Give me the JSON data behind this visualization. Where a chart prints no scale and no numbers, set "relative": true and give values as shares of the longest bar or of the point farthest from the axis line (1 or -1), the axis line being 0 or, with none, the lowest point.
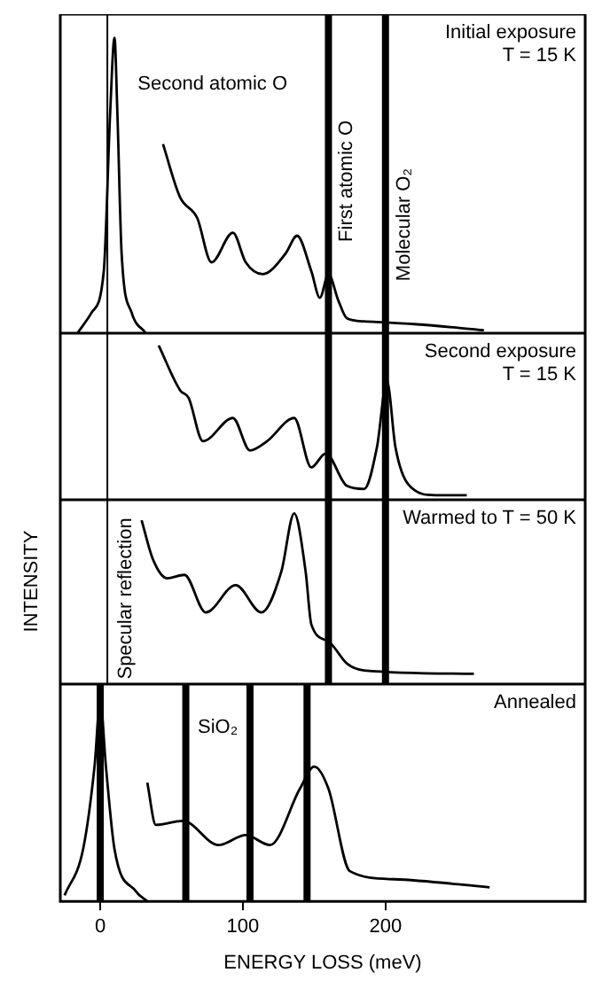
{
  "chart_data": [
    {
      "type": "line",
      "title": "Initial exposure T = 15 K",
      "relative": true,
      "xlim": [
        -28,
        340
      ],
      "xticks": [
        0,
        100,
        200
      ],
      "tick_labels": false,
      "series": [
        {
          "color": "#000000",
          "x": [
            -16,
            -6,
            2.5,
            7,
            10,
            12,
            15,
            22,
            32
          ],
          "values": [
            0,
            0.07,
            0.21,
            0.75,
            1,
            0.75,
            0.27,
            0.07,
            0
          ]
        },
        {
          "color": "#000000",
          "x": [
            44,
            56,
            68,
            78,
            93,
            102,
            114,
            130,
            138,
            148,
            154,
            160,
            167,
            173,
            185,
            222,
            269
          ],
          "values": [
            0.64,
            0.46,
            0.39,
            0.24,
            0.34,
            0.24,
            0.2,
            0.27,
            0.33,
            0.21,
            0.12,
            0.2,
            0.11,
            0.05,
            0.04,
            0.03,
            0.01
          ]
        }
      ],
      "ref_lines": [
        {
          "axis": "x",
          "value": 5,
          "color": "#000000"
        },
        {
          "axis": "x",
          "value": 160,
          "label": "First atomic O",
          "color": "#000000"
        },
        {
          "axis": "x",
          "value": 200,
          "label": "Molecular O₂",
          "color": "#000000"
        }
      ],
      "annotations": [
        "Second atomic O"
      ]
    },
    {
      "type": "line",
      "title": "Second exposure T = 15 K",
      "relative": true,
      "xlim": [
        -28,
        340
      ],
      "xticks": [
        0,
        100,
        200
      ],
      "tick_labels": false,
      "series": [
        {
          "color": "#000000",
          "x": [
            41,
            56,
            62,
            72,
            93,
            105,
            117,
            136,
            148,
            158,
            173,
            185,
            194,
            201,
            207,
            216,
            235,
            257
          ],
          "values": [
            1,
            0.71,
            0.66,
            0.38,
            0.53,
            0.32,
            0.38,
            0.53,
            0.21,
            0.3,
            0.09,
            0.07,
            0.34,
            0.77,
            0.34,
            0.1,
            0.03,
            0.03
          ]
        }
      ],
      "ref_lines": [
        {
          "axis": "x",
          "value": 5,
          "color": "#000000"
        },
        {
          "axis": "x",
          "value": 160,
          "color": "#000000"
        },
        {
          "axis": "x",
          "value": 200,
          "color": "#000000"
        }
      ]
    },
    {
      "type": "line",
      "title": "Warmed to T = 50 K",
      "ylabel": "INTENSITY",
      "relative": true,
      "xlim": [
        -28,
        340
      ],
      "xticks": [
        0,
        100,
        200
      ],
      "tick_labels": false,
      "series": [
        {
          "color": "#000000",
          "x": [
            29,
            37,
            47,
            59,
            74,
            95,
            113,
            127,
            136,
            144,
            148,
            160,
            173,
            185,
            262
          ],
          "values": [
            0.96,
            0.73,
            0.62,
            0.64,
            0.42,
            0.58,
            0.42,
            0.66,
            1,
            0.66,
            0.35,
            0.25,
            0.12,
            0.08,
            0.06
          ]
        }
      ],
      "ref_lines": [
        {
          "axis": "x",
          "value": 5,
          "label": "Specular reflection",
          "color": "#000000"
        },
        {
          "axis": "x",
          "value": 160,
          "color": "#000000"
        },
        {
          "axis": "x",
          "value": 200,
          "color": "#000000"
        }
      ]
    },
    {
      "type": "line",
      "title": "Annealed",
      "xlabel": "ENERGY LOSS (meV)",
      "relative": true,
      "xlim": [
        -28,
        340
      ],
      "xticks": [
        0,
        100,
        200
      ],
      "tick_labels": "x",
      "series": [
        {
          "color": "#000000",
          "x": [
            -25,
            -12,
            -4,
            0,
            4,
            10,
            25,
            33
          ],
          "values": [
            0.03,
            0.26,
            0.67,
            1,
            0.67,
            0.26,
            0.05,
            0
          ]
        },
        {
          "color": "#000000",
          "x": [
            33,
            39,
            58,
            83,
            102,
            119,
            140,
            150,
            160,
            175,
            206,
            273
          ],
          "values": [
            0.59,
            0.38,
            0.4,
            0.28,
            0.33,
            0.28,
            0.56,
            0.67,
            0.56,
            0.15,
            0.11,
            0.07
          ]
        }
      ],
      "ref_lines": [
        {
          "axis": "x",
          "value": 0,
          "color": "#000000"
        },
        {
          "axis": "x",
          "value": 60,
          "color": "#000000"
        },
        {
          "axis": "x",
          "value": 105,
          "color": "#000000"
        },
        {
          "axis": "x",
          "value": 145,
          "color": "#000000"
        }
      ],
      "annotations": [
        "SiO₂"
      ]
    }
  ]
}
